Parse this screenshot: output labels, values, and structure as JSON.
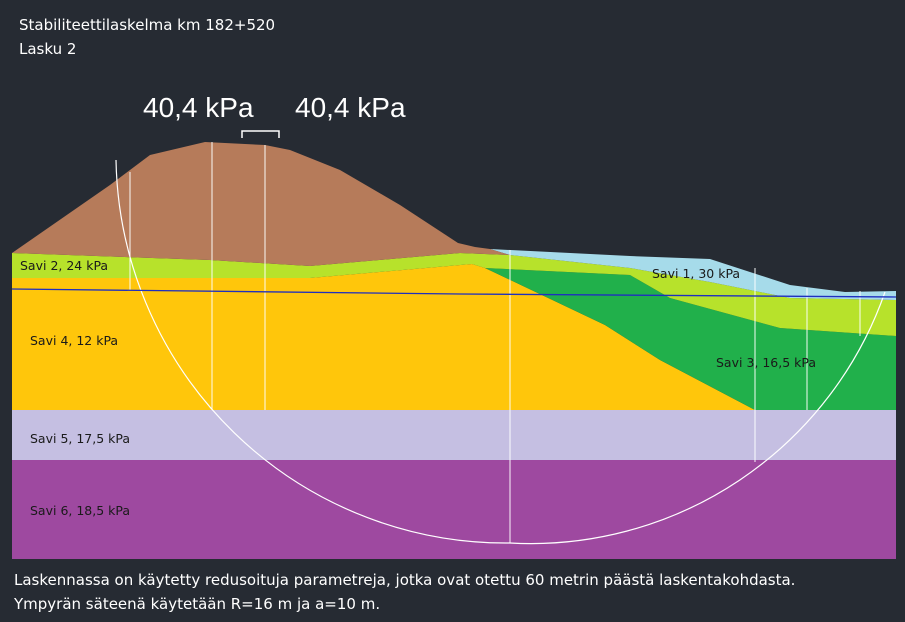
{
  "title": {
    "line1": "Stabiliteettilaskelma km 182+520",
    "line2": "Lasku 2"
  },
  "loads": {
    "left": "40,4 kPa",
    "right": "40,4 kPa"
  },
  "layers": {
    "savi1": {
      "label": "Savi 1, 30 kPa",
      "color": "#a6dbea"
    },
    "savi2": {
      "label": "Savi 2, 24 kPa",
      "color": "#b7e22b"
    },
    "savi3": {
      "label": "Savi 3, 16,5 kPa",
      "color": "#21b04b"
    },
    "savi4": {
      "label": "Savi 4, 12 kPa",
      "color": "#ffc60b"
    },
    "savi5": {
      "label": "Savi 5, 17,5 kPa",
      "color": "#c5bfe2"
    },
    "savi6": {
      "label": "Savi 6, 18,5 kPa",
      "color": "#9e49a0"
    },
    "embankment": {
      "color": "#b67b5a"
    }
  },
  "colors": {
    "background": "#262b33",
    "water_table": "#1f2fbf",
    "slip_circle": "#ffffff"
  },
  "notes": {
    "line1": "Laskennassa on käytetty redusoituja parametreja, jotka ovat otettu 60 metrin päästä laskentakohdasta.",
    "line2": "Ympyrän säteenä käytetään R=16 m ja a=10 m."
  }
}
